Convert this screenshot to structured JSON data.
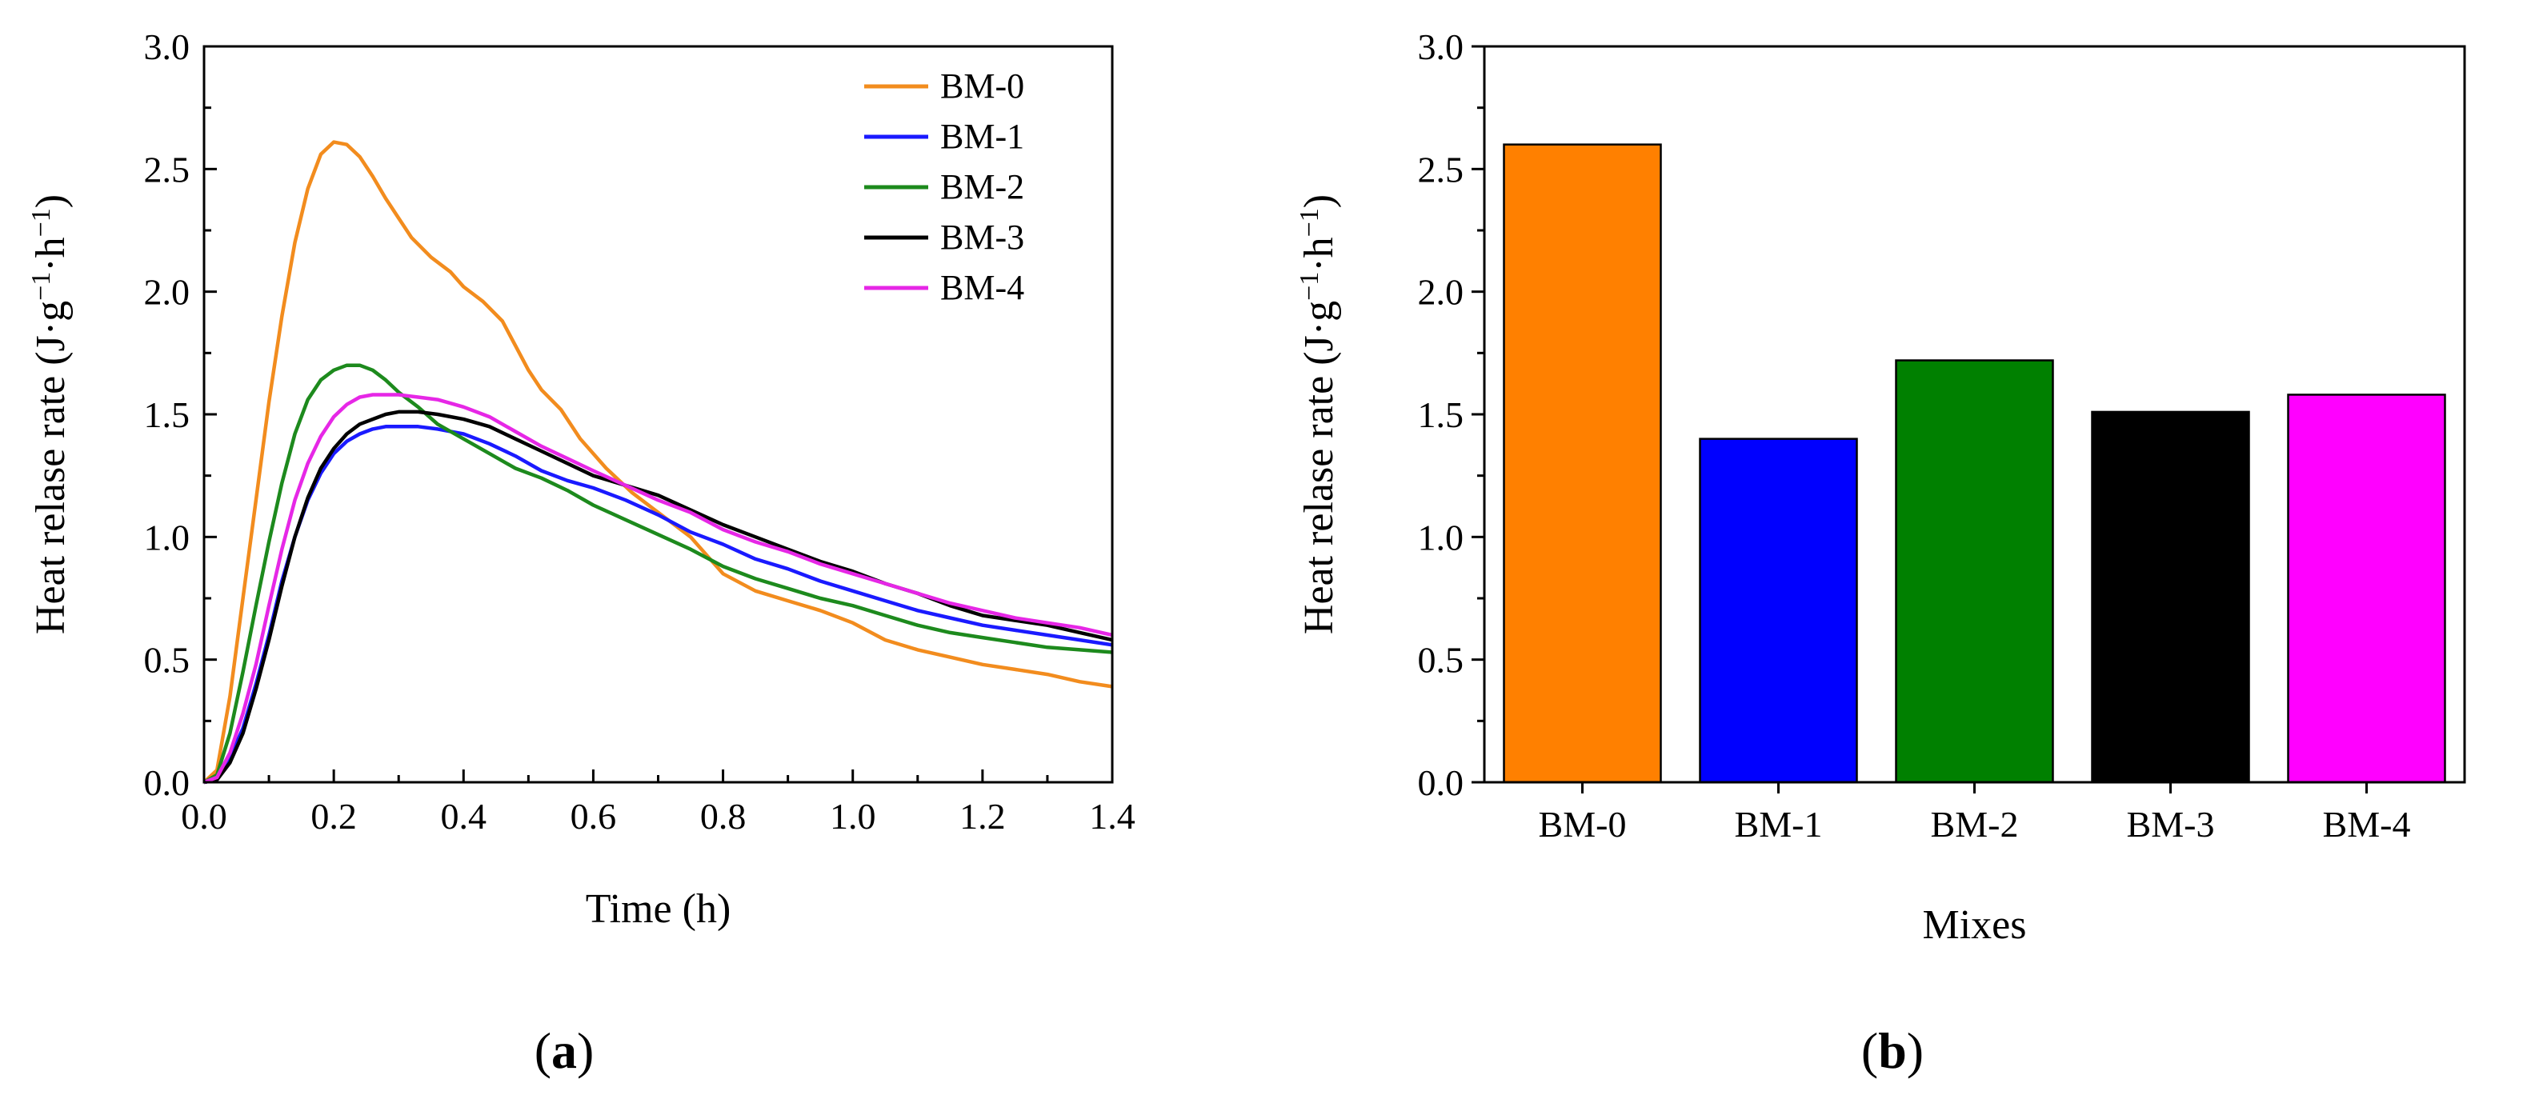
{
  "chart_data": [
    {
      "panel": "a",
      "type": "line",
      "xlabel": "Time (h)",
      "ylabel": "Heat relase rate (J·g⁻¹·h⁻¹)",
      "ylabel_parts": {
        "base": "Heat relase rate (J·g",
        "sup1": "−1",
        "mid": "·h",
        "sup2": "−1",
        "end": ")"
      },
      "xlim": [
        0.0,
        1.4
      ],
      "ylim": [
        0.0,
        3.0
      ],
      "xticks": [
        "0.0",
        "0.2",
        "0.4",
        "0.6",
        "0.8",
        "1.0",
        "1.2",
        "1.4"
      ],
      "yticks": [
        "0.0",
        "0.5",
        "1.0",
        "1.5",
        "2.0",
        "2.5",
        "3.0"
      ],
      "legend_position": "top-right",
      "series": [
        {
          "name": "BM-0",
          "color": "#f28c1e",
          "points": [
            [
              0.0,
              0.0
            ],
            [
              0.02,
              0.05
            ],
            [
              0.04,
              0.35
            ],
            [
              0.06,
              0.75
            ],
            [
              0.08,
              1.15
            ],
            [
              0.1,
              1.55
            ],
            [
              0.12,
              1.9
            ],
            [
              0.14,
              2.2
            ],
            [
              0.16,
              2.42
            ],
            [
              0.18,
              2.56
            ],
            [
              0.2,
              2.61
            ],
            [
              0.22,
              2.6
            ],
            [
              0.24,
              2.55
            ],
            [
              0.26,
              2.47
            ],
            [
              0.28,
              2.38
            ],
            [
              0.3,
              2.3
            ],
            [
              0.32,
              2.22
            ],
            [
              0.35,
              2.14
            ],
            [
              0.38,
              2.08
            ],
            [
              0.4,
              2.02
            ],
            [
              0.43,
              1.96
            ],
            [
              0.46,
              1.88
            ],
            [
              0.48,
              1.78
            ],
            [
              0.5,
              1.68
            ],
            [
              0.52,
              1.6
            ],
            [
              0.55,
              1.52
            ],
            [
              0.58,
              1.4
            ],
            [
              0.62,
              1.28
            ],
            [
              0.66,
              1.18
            ],
            [
              0.7,
              1.1
            ],
            [
              0.75,
              1.0
            ],
            [
              0.8,
              0.85
            ],
            [
              0.85,
              0.78
            ],
            [
              0.9,
              0.74
            ],
            [
              0.95,
              0.7
            ],
            [
              1.0,
              0.65
            ],
            [
              1.05,
              0.58
            ],
            [
              1.1,
              0.54
            ],
            [
              1.15,
              0.51
            ],
            [
              1.2,
              0.48
            ],
            [
              1.25,
              0.46
            ],
            [
              1.3,
              0.44
            ],
            [
              1.35,
              0.41
            ],
            [
              1.4,
              0.39
            ]
          ]
        },
        {
          "name": "BM-1",
          "color": "#1a1aff",
          "points": [
            [
              0.0,
              0.0
            ],
            [
              0.02,
              0.01
            ],
            [
              0.04,
              0.1
            ],
            [
              0.06,
              0.22
            ],
            [
              0.08,
              0.4
            ],
            [
              0.1,
              0.6
            ],
            [
              0.12,
              0.82
            ],
            [
              0.14,
              1.0
            ],
            [
              0.16,
              1.15
            ],
            [
              0.18,
              1.26
            ],
            [
              0.2,
              1.34
            ],
            [
              0.22,
              1.39
            ],
            [
              0.24,
              1.42
            ],
            [
              0.26,
              1.44
            ],
            [
              0.28,
              1.45
            ],
            [
              0.3,
              1.45
            ],
            [
              0.33,
              1.45
            ],
            [
              0.36,
              1.44
            ],
            [
              0.4,
              1.42
            ],
            [
              0.44,
              1.38
            ],
            [
              0.48,
              1.33
            ],
            [
              0.52,
              1.27
            ],
            [
              0.56,
              1.23
            ],
            [
              0.6,
              1.2
            ],
            [
              0.65,
              1.15
            ],
            [
              0.7,
              1.09
            ],
            [
              0.75,
              1.02
            ],
            [
              0.8,
              0.97
            ],
            [
              0.85,
              0.91
            ],
            [
              0.9,
              0.87
            ],
            [
              0.95,
              0.82
            ],
            [
              1.0,
              0.78
            ],
            [
              1.05,
              0.74
            ],
            [
              1.1,
              0.7
            ],
            [
              1.15,
              0.67
            ],
            [
              1.2,
              0.64
            ],
            [
              1.25,
              0.62
            ],
            [
              1.3,
              0.6
            ],
            [
              1.35,
              0.58
            ],
            [
              1.4,
              0.56
            ]
          ]
        },
        {
          "name": "BM-2",
          "color": "#1d8a1d",
          "points": [
            [
              0.0,
              0.0
            ],
            [
              0.02,
              0.03
            ],
            [
              0.04,
              0.2
            ],
            [
              0.06,
              0.45
            ],
            [
              0.08,
              0.72
            ],
            [
              0.1,
              0.98
            ],
            [
              0.12,
              1.22
            ],
            [
              0.14,
              1.42
            ],
            [
              0.16,
              1.56
            ],
            [
              0.18,
              1.64
            ],
            [
              0.2,
              1.68
            ],
            [
              0.22,
              1.7
            ],
            [
              0.24,
              1.7
            ],
            [
              0.26,
              1.68
            ],
            [
              0.28,
              1.64
            ],
            [
              0.3,
              1.59
            ],
            [
              0.33,
              1.53
            ],
            [
              0.36,
              1.46
            ],
            [
              0.4,
              1.4
            ],
            [
              0.44,
              1.34
            ],
            [
              0.48,
              1.28
            ],
            [
              0.52,
              1.24
            ],
            [
              0.56,
              1.19
            ],
            [
              0.6,
              1.13
            ],
            [
              0.65,
              1.07
            ],
            [
              0.7,
              1.01
            ],
            [
              0.75,
              0.95
            ],
            [
              0.8,
              0.88
            ],
            [
              0.85,
              0.83
            ],
            [
              0.9,
              0.79
            ],
            [
              0.95,
              0.75
            ],
            [
              1.0,
              0.72
            ],
            [
              1.05,
              0.68
            ],
            [
              1.1,
              0.64
            ],
            [
              1.15,
              0.61
            ],
            [
              1.2,
              0.59
            ],
            [
              1.25,
              0.57
            ],
            [
              1.3,
              0.55
            ],
            [
              1.35,
              0.54
            ],
            [
              1.4,
              0.53
            ]
          ]
        },
        {
          "name": "BM-3",
          "color": "#000000",
          "points": [
            [
              0.0,
              0.0
            ],
            [
              0.02,
              0.01
            ],
            [
              0.04,
              0.08
            ],
            [
              0.06,
              0.2
            ],
            [
              0.08,
              0.38
            ],
            [
              0.1,
              0.58
            ],
            [
              0.12,
              0.8
            ],
            [
              0.14,
              1.0
            ],
            [
              0.16,
              1.16
            ],
            [
              0.18,
              1.28
            ],
            [
              0.2,
              1.36
            ],
            [
              0.22,
              1.42
            ],
            [
              0.24,
              1.46
            ],
            [
              0.26,
              1.48
            ],
            [
              0.28,
              1.5
            ],
            [
              0.3,
              1.51
            ],
            [
              0.33,
              1.51
            ],
            [
              0.36,
              1.5
            ],
            [
              0.4,
              1.48
            ],
            [
              0.44,
              1.45
            ],
            [
              0.48,
              1.4
            ],
            [
              0.52,
              1.35
            ],
            [
              0.56,
              1.3
            ],
            [
              0.6,
              1.25
            ],
            [
              0.65,
              1.21
            ],
            [
              0.7,
              1.17
            ],
            [
              0.75,
              1.11
            ],
            [
              0.8,
              1.05
            ],
            [
              0.85,
              1.0
            ],
            [
              0.9,
              0.95
            ],
            [
              0.95,
              0.9
            ],
            [
              1.0,
              0.86
            ],
            [
              1.05,
              0.81
            ],
            [
              1.1,
              0.77
            ],
            [
              1.15,
              0.72
            ],
            [
              1.2,
              0.68
            ],
            [
              1.25,
              0.66
            ],
            [
              1.3,
              0.64
            ],
            [
              1.35,
              0.61
            ],
            [
              1.4,
              0.58
            ]
          ]
        },
        {
          "name": "BM-4",
          "color": "#e627e6",
          "points": [
            [
              0.0,
              0.0
            ],
            [
              0.02,
              0.02
            ],
            [
              0.04,
              0.12
            ],
            [
              0.06,
              0.28
            ],
            [
              0.08,
              0.48
            ],
            [
              0.1,
              0.72
            ],
            [
              0.12,
              0.95
            ],
            [
              0.14,
              1.15
            ],
            [
              0.16,
              1.3
            ],
            [
              0.18,
              1.41
            ],
            [
              0.2,
              1.49
            ],
            [
              0.22,
              1.54
            ],
            [
              0.24,
              1.57
            ],
            [
              0.26,
              1.58
            ],
            [
              0.28,
              1.58
            ],
            [
              0.3,
              1.58
            ],
            [
              0.33,
              1.57
            ],
            [
              0.36,
              1.56
            ],
            [
              0.4,
              1.53
            ],
            [
              0.44,
              1.49
            ],
            [
              0.48,
              1.43
            ],
            [
              0.52,
              1.37
            ],
            [
              0.56,
              1.32
            ],
            [
              0.6,
              1.27
            ],
            [
              0.65,
              1.21
            ],
            [
              0.7,
              1.15
            ],
            [
              0.75,
              1.1
            ],
            [
              0.8,
              1.03
            ],
            [
              0.85,
              0.98
            ],
            [
              0.9,
              0.94
            ],
            [
              0.95,
              0.89
            ],
            [
              1.0,
              0.85
            ],
            [
              1.05,
              0.81
            ],
            [
              1.1,
              0.77
            ],
            [
              1.15,
              0.73
            ],
            [
              1.2,
              0.7
            ],
            [
              1.25,
              0.67
            ],
            [
              1.3,
              0.65
            ],
            [
              1.35,
              0.63
            ],
            [
              1.4,
              0.6
            ]
          ]
        }
      ]
    },
    {
      "panel": "b",
      "type": "bar",
      "xlabel": "Mixes",
      "ylabel": "Heat relase rate (J·g⁻¹·h⁻¹)",
      "ylabel_parts": {
        "base": "Heat relase rate (J·g",
        "sup1": "−1",
        "mid": "·h",
        "sup2": "−1",
        "end": ")"
      },
      "ylim": [
        0.0,
        3.0
      ],
      "yticks": [
        "0.0",
        "0.5",
        "1.0",
        "1.5",
        "2.0",
        "2.5",
        "3.0"
      ],
      "categories": [
        "BM-0",
        "BM-1",
        "BM-2",
        "BM-3",
        "BM-4"
      ],
      "values": [
        2.6,
        1.4,
        1.72,
        1.51,
        1.58
      ],
      "colors": [
        "#ff8000",
        "#0000ff",
        "#008000",
        "#000000",
        "#ff00ff"
      ]
    }
  ],
  "panel_labels": {
    "a": {
      "open": "(",
      "letter": "a",
      "close": ")"
    },
    "b": {
      "open": "(",
      "letter": "b",
      "close": ")"
    }
  }
}
